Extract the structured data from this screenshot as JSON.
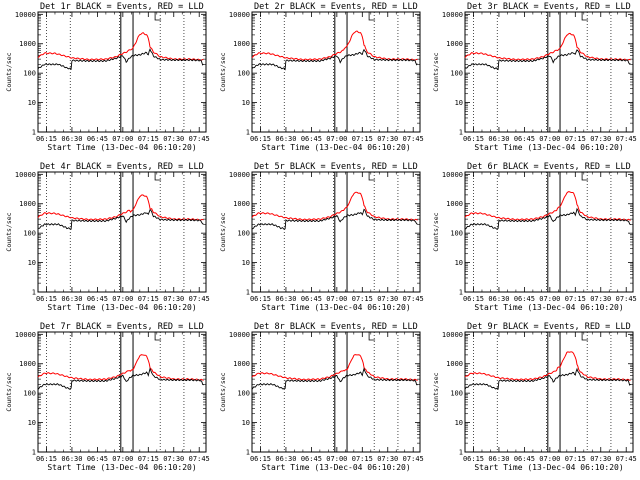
{
  "chart_data": [
    {
      "type": "line",
      "title": "Det 1r BLACK = Events, RED = LLD"
    },
    {
      "type": "line",
      "title": "Det 2r BLACK = Events, RED = LLD"
    },
    {
      "type": "line",
      "title": "Det 3r BLACK = Events, RED = LLD"
    },
    {
      "type": "line",
      "title": "Det 4r BLACK = Events, RED = LLD"
    },
    {
      "type": "line",
      "title": "Det 5r BLACK = Events, RED = LLD"
    },
    {
      "type": "line",
      "title": "Det 6r BLACK = Events, RED = LLD"
    },
    {
      "type": "line",
      "title": "Det 7r BLACK = Events, RED = LLD"
    },
    {
      "type": "line",
      "title": "Det 8r BLACK = Events, RED = LLD"
    },
    {
      "type": "line",
      "title": "Det 9r BLACK = Events, RED = LLD"
    }
  ],
  "shared": {
    "xlabel": "Start Time (13-Dec-04 06:10:20)",
    "ylabel": "Counts/sec",
    "x_ticks": [
      "06:15",
      "06:30",
      "06:45",
      "07:00",
      "07:15",
      "07:30",
      "07:45"
    ],
    "x_tick_minutes": [
      15,
      30,
      45,
      60,
      75,
      90,
      105
    ],
    "xlim_minutes": [
      10,
      109
    ],
    "y_ticks": [
      "1",
      "10",
      "100",
      "1000",
      "10000"
    ],
    "y_tick_values": [
      1,
      10,
      100,
      1000,
      10000
    ],
    "ylim": [
      1,
      12000
    ],
    "y_scale": "log",
    "dotted_lines_minutes": [
      15,
      29,
      58,
      82,
      96
    ],
    "solid_lines_minutes": [
      58.8,
      66
    ],
    "series": [
      {
        "name": "Events",
        "color": "#000000"
      },
      {
        "name": "LLD",
        "color": "#ff0000"
      }
    ]
  }
}
